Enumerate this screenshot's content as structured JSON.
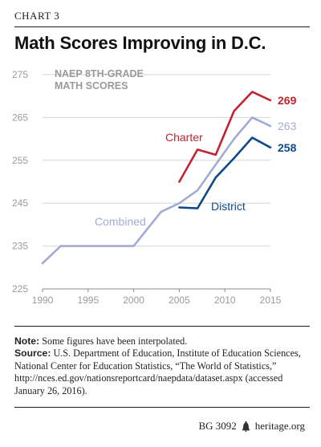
{
  "header": {
    "kicker": "CHART 3",
    "title": "Math Scores Improving in D.C."
  },
  "chart_data": {
    "type": "line",
    "subtitle_line1": "NAEP 8TH-GRADE",
    "subtitle_line2": "MATH SCORES",
    "x_ticks": [
      "1990",
      "1995",
      "2000",
      "2005",
      "2010",
      "2015"
    ],
    "y_ticks": [
      "275",
      "265",
      "255",
      "245",
      "235",
      "225"
    ],
    "xlim": [
      1990,
      2015
    ],
    "ylim": [
      225,
      275
    ],
    "grid": true,
    "series": [
      {
        "name": "Combined",
        "color": "#a3abd4",
        "x": [
          1990,
          1992,
          2000,
          2003,
          2005,
          2007,
          2009,
          2011,
          2013,
          2015
        ],
        "y": [
          231,
          235,
          235,
          243,
          245,
          248,
          254,
          260,
          265,
          263
        ],
        "end_label": "263"
      },
      {
        "name": "Charter",
        "color": "#c1242f",
        "x": [
          2005,
          2007,
          2009,
          2011,
          2013,
          2015
        ],
        "y": [
          250,
          257.5,
          256.3,
          266.5,
          271,
          269
        ],
        "end_label": "269"
      },
      {
        "name": "District",
        "color": "#0e4a8a",
        "x": [
          2005,
          2007,
          2009,
          2011,
          2013,
          2015
        ],
        "y": [
          244,
          243.8,
          251,
          255.5,
          260.3,
          258
        ],
        "end_label": "258"
      }
    ]
  },
  "notes": {
    "note_label": "Note:",
    "note_text": " Some figures have been interpolated.",
    "source_label": "Source:",
    "source_text": " U.S. Department of Education, Institute of Education Sciences, National Center for Education Statistics, “The World of Statistics,” http://nces.ed.gov/nationsreportcard/naepdata/dataset.aspx (accessed January 26, 2016)."
  },
  "footer": {
    "report_id": "BG 3092",
    "site": "heritage.org",
    "icon": "liberty-bell-icon"
  }
}
